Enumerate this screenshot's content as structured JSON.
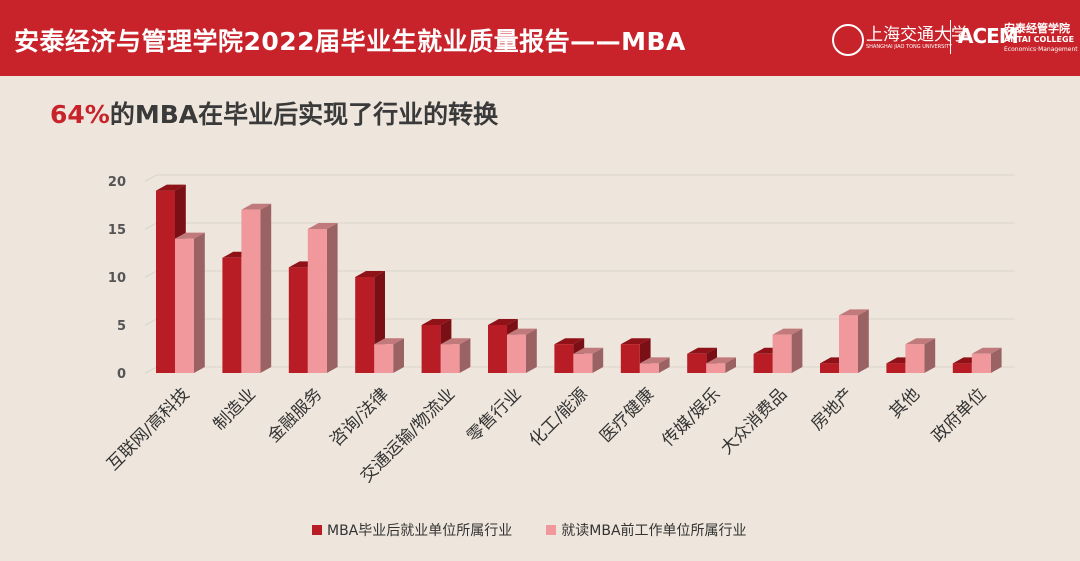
{
  "header": {
    "title": "安泰经济与管理学院2022届毕业生就业质量报告——MBA",
    "logo_sjtu": "上海交通大学",
    "logo_sjtu_en": "SHANGHAI JIAO TONG UNIVERSITY",
    "logo_antai_cn": "安泰经管学院",
    "logo_antai_en1": "ANTAI COLLEGE",
    "logo_antai_en2": "Economics·Management"
  },
  "subtitle": {
    "highlight": "64%",
    "rest": "的MBA在毕业后实现了行业的转换"
  },
  "colors": {
    "brand": "#c8232a",
    "series1": "#b81c24",
    "series2": "#f0989b",
    "background": "#eee6dc"
  },
  "chart_data": {
    "type": "bar",
    "categories": [
      "互联网/高科技",
      "制造业",
      "金融服务",
      "咨询/法律",
      "交通运输/物流业",
      "零售行业",
      "化工/能源",
      "医疗健康",
      "传媒/娱乐",
      "大众消费品",
      "房地产",
      "其他",
      "政府单位"
    ],
    "series": [
      {
        "name": "MBA毕业后就业单位所属行业",
        "values": [
          19,
          12,
          11,
          10,
          5,
          5,
          3,
          3,
          2,
          2,
          1,
          1,
          1
        ]
      },
      {
        "name": "就读MBA前工作单位所属行业",
        "values": [
          14,
          17,
          15,
          3,
          3,
          4,
          2,
          1,
          1,
          4,
          6,
          3,
          2
        ]
      }
    ],
    "ylim": [
      0,
      20
    ],
    "yticks": [
      0,
      5,
      10,
      15,
      20
    ],
    "grid": true,
    "legend": "bottom",
    "style": "3d clustered column"
  }
}
